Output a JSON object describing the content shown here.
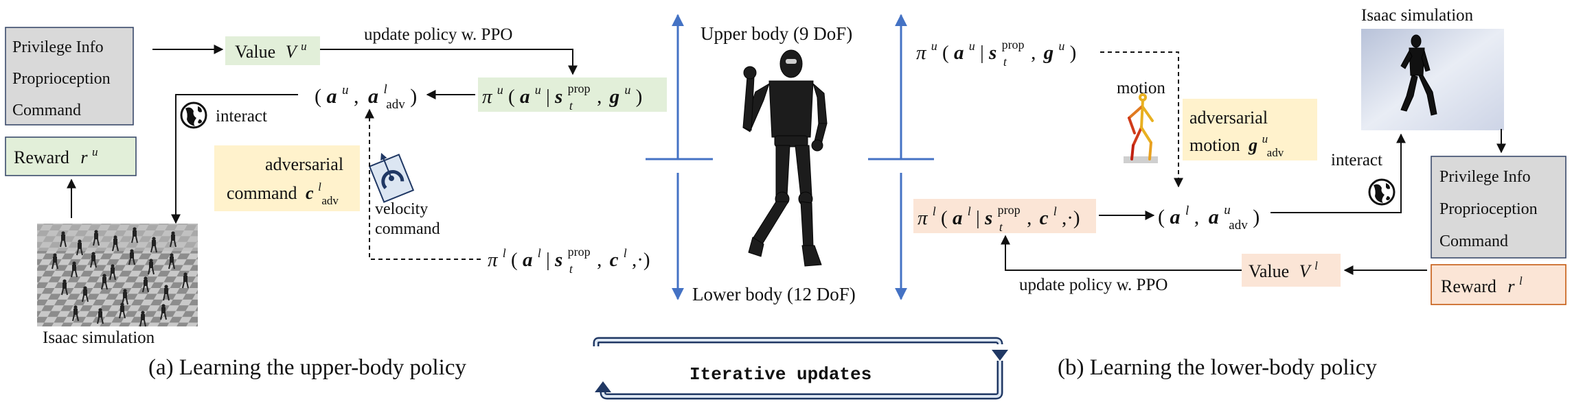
{
  "left": {
    "info_box": [
      "Privilege Info",
      "Proprioception",
      "Command"
    ],
    "value_label": "Value",
    "value_sym": "V",
    "value_sup": "u",
    "update_label": "update policy w. PPO",
    "policy": {
      "pi": "π",
      "pi_sup": "u",
      "a": "a",
      "a_sup": "u",
      "s": "s",
      "s_sup": "prop",
      "s_sub": "t",
      "g": "g",
      "g_sup": "u"
    },
    "action_pair": {
      "a1": "a",
      "a1_sup": "u",
      "a2": "a",
      "a2_sup": "l",
      "a2_sub": "adv"
    },
    "interact_label": "interact",
    "reward_label": "Reward",
    "reward_sym": "r",
    "reward_sup": "u",
    "sim_label": "Isaac simulation",
    "adv_cmd_line1": "adversarial",
    "adv_cmd_line2": "command",
    "adv_cmd_sym": "c",
    "adv_cmd_sup": "l",
    "adv_cmd_sub": "adv",
    "velocity_line1": "velocity",
    "velocity_line2": "command",
    "lower_policy": {
      "pi": "π",
      "pi_sup": "l",
      "a": "a",
      "a_sup": "l",
      "s": "s",
      "s_sup": "prop",
      "s_sub": "t",
      "c": "c",
      "c_sup": "l",
      "tail": ",·)"
    },
    "caption": "(a) Learning the upper-body policy"
  },
  "center": {
    "upper_label": "Upper body (9 DoF)",
    "lower_label": "Lower body (12 DoF)",
    "iterative_label": "Iterative updates"
  },
  "right": {
    "upper_policy": {
      "pi": "π",
      "pi_sup": "u",
      "a": "a",
      "a_sup": "u",
      "s": "s",
      "s_sup": "prop",
      "s_sub": "t",
      "g": "g",
      "g_sup": "u"
    },
    "motion_label": "motion",
    "adv_motion_line1": "adversarial",
    "adv_motion_line2": "motion",
    "adv_motion_sym": "g",
    "adv_motion_sup": "u",
    "adv_motion_sub": "adv",
    "lower_policy": {
      "pi": "π",
      "pi_sup": "l",
      "a": "a",
      "a_sup": "l",
      "s": "s",
      "s_sup": "prop",
      "s_sub": "t",
      "c": "c",
      "c_sup": "l",
      "tail": ",·)"
    },
    "action_pair": {
      "a1": "a",
      "a1_sup": "l",
      "a2": "a",
      "a2_sup": "u",
      "a2_sub": "adv"
    },
    "interact_label": "interact",
    "sim_label": "Isaac simulation",
    "info_box": [
      "Privilege Info",
      "Proprioception",
      "Command"
    ],
    "update_label": "update policy w. PPO",
    "value_label": "Value",
    "value_sym": "V",
    "value_sup": "l",
    "reward_label": "Reward",
    "reward_sym": "r",
    "reward_sup": "l",
    "caption": "(b) Learning the lower-body policy"
  },
  "colors": {
    "green_box": "#e2efd9",
    "yellow_box": "#fff2cc",
    "orange_box": "#fbe5d6",
    "grey_box": "#d9d9d9",
    "navy": "#203864",
    "blue_arrow": "#4472c4"
  }
}
